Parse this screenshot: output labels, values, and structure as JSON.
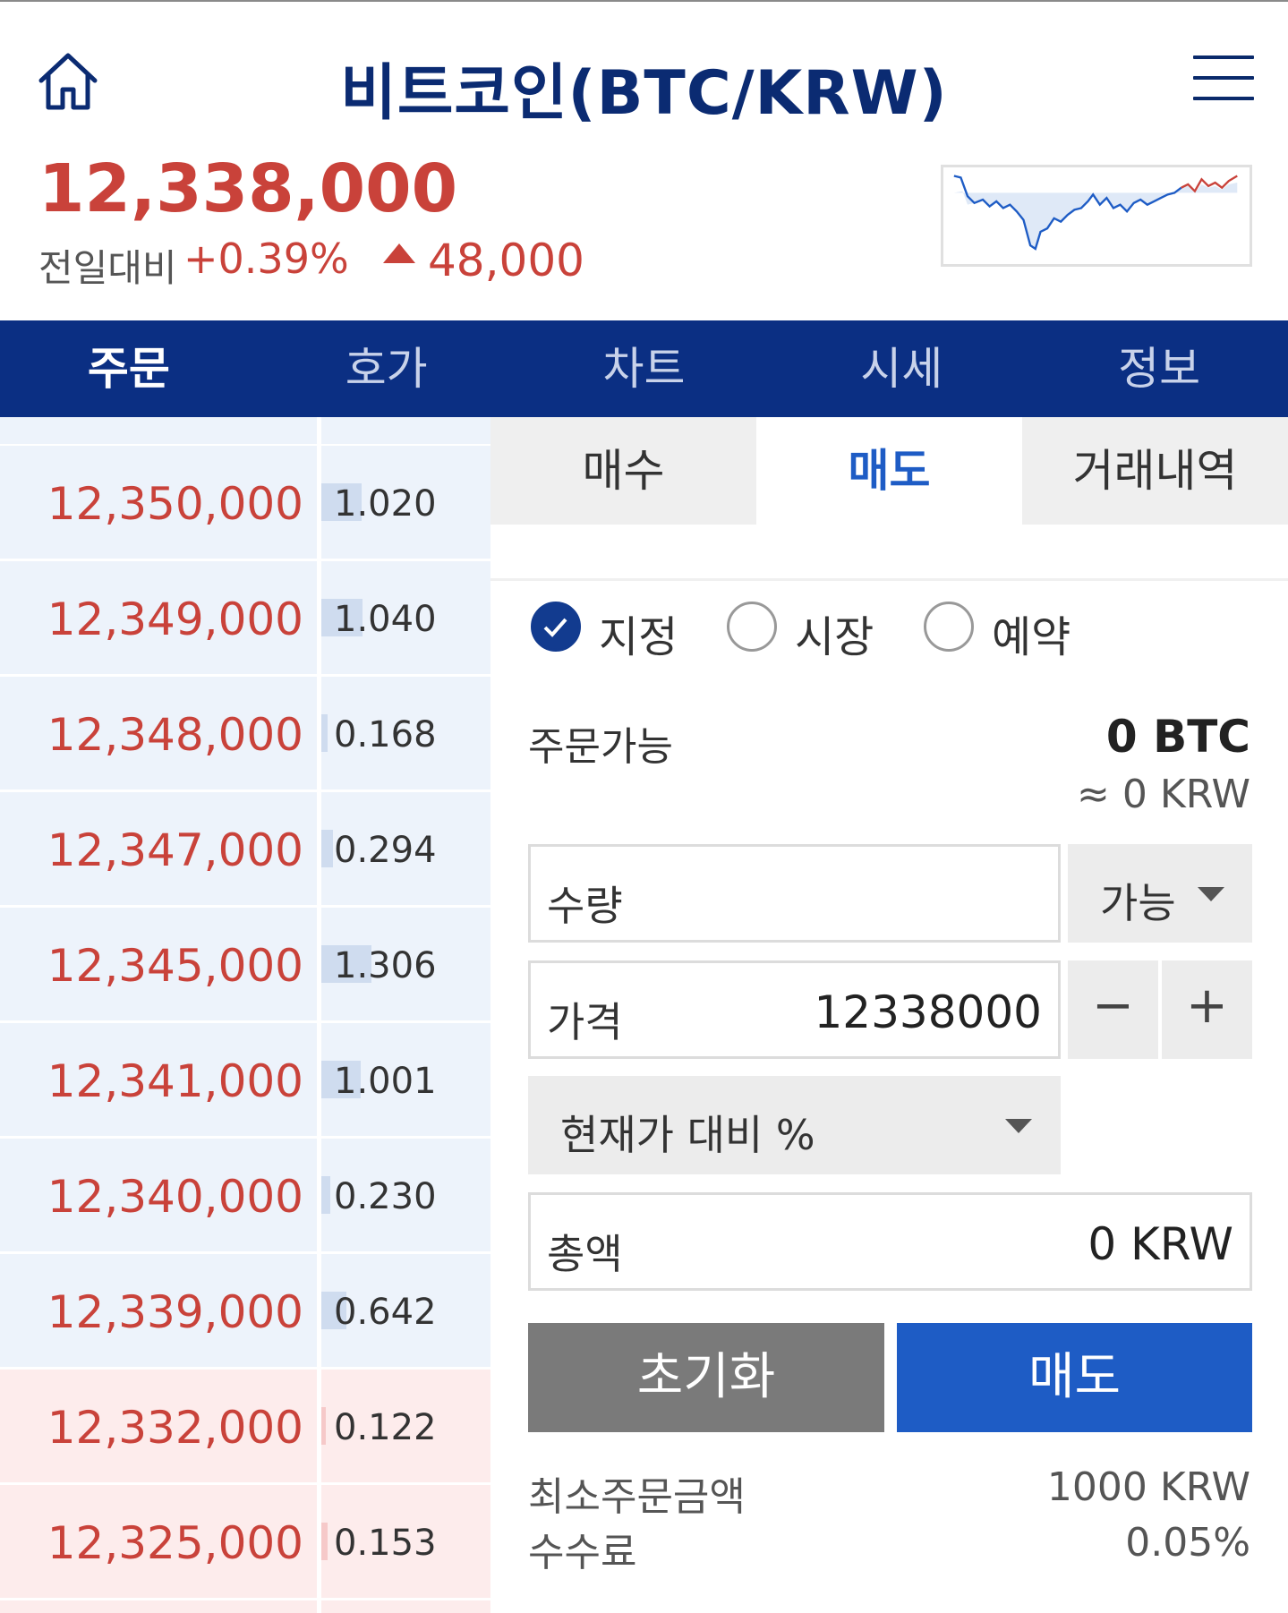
{
  "header": {
    "title": "비트코인(BTC/KRW)",
    "price": "12,338,000",
    "change_label": "전일대비",
    "change_pct": "+0.39%",
    "change_amount": "48,000"
  },
  "colors": {
    "up": "#c9423a",
    "navy": "#0b2f83",
    "accent": "#1e5cc5",
    "bid_bg": "#fdecec",
    "ask_bg": "#edf3fb"
  },
  "tabs": [
    "주문",
    "호가",
    "차트",
    "시세",
    "정보"
  ],
  "orderbook": [
    {
      "price": "12,350,000",
      "qty": "1.020",
      "side": "ask"
    },
    {
      "price": "12,349,000",
      "qty": "1.040",
      "side": "ask"
    },
    {
      "price": "12,348,000",
      "qty": "0.168",
      "side": "ask"
    },
    {
      "price": "12,347,000",
      "qty": "0.294",
      "side": "ask"
    },
    {
      "price": "12,345,000",
      "qty": "1.306",
      "side": "ask"
    },
    {
      "price": "12,341,000",
      "qty": "1.001",
      "side": "ask"
    },
    {
      "price": "12,340,000",
      "qty": "0.230",
      "side": "ask"
    },
    {
      "price": "12,339,000",
      "qty": "0.642",
      "side": "ask"
    },
    {
      "price": "12,332,000",
      "qty": "0.122",
      "side": "bid"
    },
    {
      "price": "12,325,000",
      "qty": "0.153",
      "side": "bid"
    }
  ],
  "subtabs": [
    "매수",
    "매도",
    "거래내역"
  ],
  "order_types": [
    "지정",
    "시장",
    "예약"
  ],
  "available": {
    "label": "주문가능",
    "value": "0 BTC",
    "krw": "≈ 0 KRW"
  },
  "form": {
    "qty_label": "수량",
    "qty_option": "가능",
    "price_label": "가격",
    "price_value": "12338000",
    "minus": "−",
    "plus": "+",
    "pct_select": "현재가 대비 %",
    "total_label": "총액",
    "total_value": "0 KRW"
  },
  "buttons": {
    "reset": "초기화",
    "sell": "매도"
  },
  "footer": {
    "min_label": "최소주문금액",
    "min_value": "1000 KRW",
    "fee_label": "수수료",
    "fee_value": "0.05%"
  }
}
